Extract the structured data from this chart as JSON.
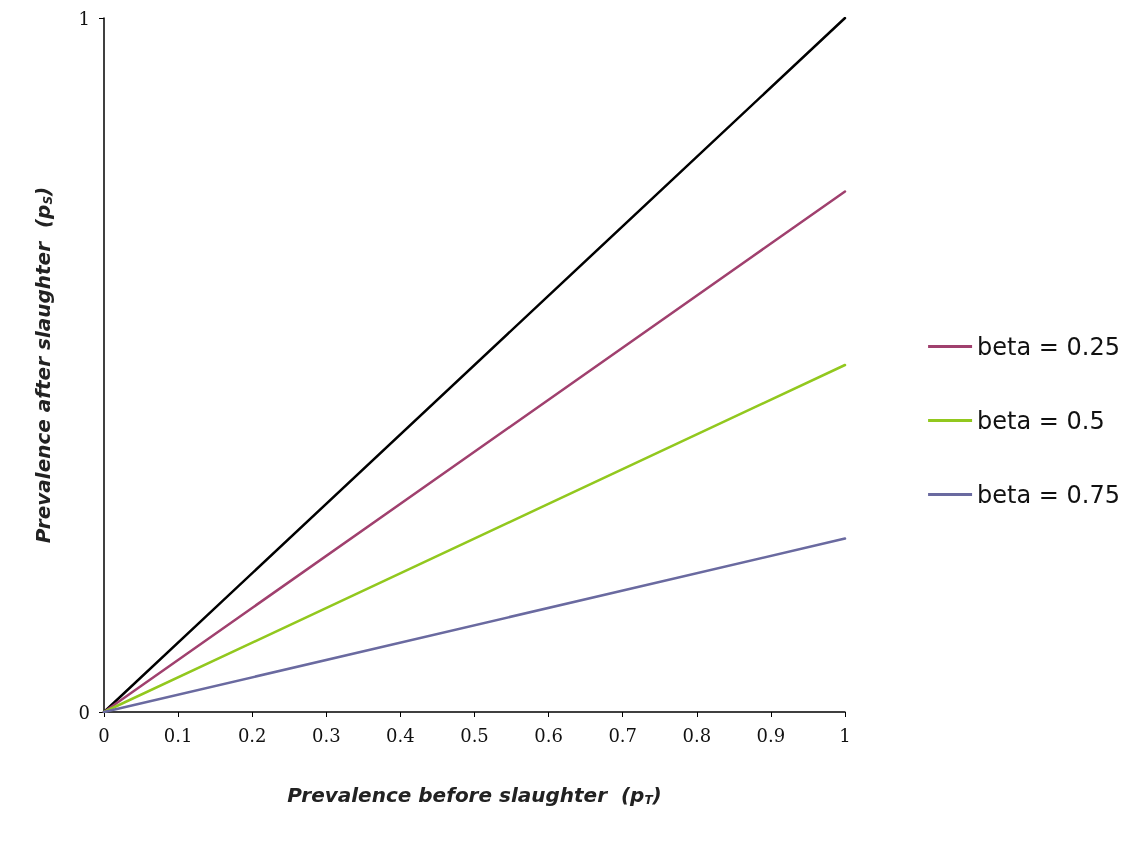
{
  "chart_data": {
    "type": "line",
    "xlabel": "Prevalence before slaughter  (p$_{T}$)",
    "ylabel": "Prevalence after slaughter  (p$_{S}$)",
    "x": [
      0,
      1
    ],
    "xlim": [
      0,
      1
    ],
    "xticks": [
      0,
      0.1,
      0.2,
      0.3,
      0.4,
      0.5,
      0.6,
      0.7,
      0.8,
      0.9,
      1
    ],
    "ylim": [
      0,
      1
    ],
    "yticks": [
      0,
      1
    ],
    "series": [
      {
        "color": "#000000",
        "values": [
          0,
          1
        ]
      },
      {
        "name": "beta = 0.25",
        "color": "#a0406e",
        "values": [
          0,
          0.75
        ]
      },
      {
        "name": "beta = 0.5",
        "color": "#92c81e",
        "values": [
          0,
          0.5
        ]
      },
      {
        "name": "beta = 0.75",
        "color": "#6a6aa0",
        "values": [
          0,
          0.25
        ]
      }
    ],
    "grid": false,
    "legend": "right",
    "marker": "none",
    "line_style": "solid"
  }
}
